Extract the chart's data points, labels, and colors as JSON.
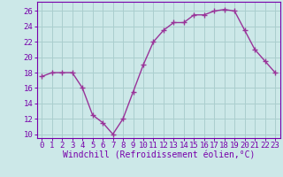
{
  "x": [
    0,
    1,
    2,
    3,
    4,
    5,
    6,
    7,
    8,
    9,
    10,
    11,
    12,
    13,
    14,
    15,
    16,
    17,
    18,
    19,
    20,
    21,
    22,
    23
  ],
  "y": [
    17.5,
    18,
    18,
    18,
    16,
    12.5,
    11.5,
    10,
    12,
    15.5,
    19,
    22,
    23.5,
    24.5,
    24.5,
    25.5,
    25.5,
    26,
    26.2,
    26,
    23.5,
    21,
    19.5,
    18
  ],
  "line_color": "#993399",
  "marker": "+",
  "marker_size": 4,
  "marker_lw": 1.0,
  "bg_color": "#cce8e8",
  "grid_color": "#aacece",
  "xlabel": "Windchill (Refroidissement éolien,°C)",
  "xlabel_fontsize": 7,
  "ylabel_ticks": [
    10,
    12,
    14,
    16,
    18,
    20,
    22,
    24,
    26
  ],
  "ylim": [
    9.5,
    27.2
  ],
  "xlim": [
    -0.5,
    23.5
  ],
  "tick_fontsize": 6.5,
  "label_color": "#7700aa",
  "spine_color": "#7700aa",
  "line_width": 1.0
}
